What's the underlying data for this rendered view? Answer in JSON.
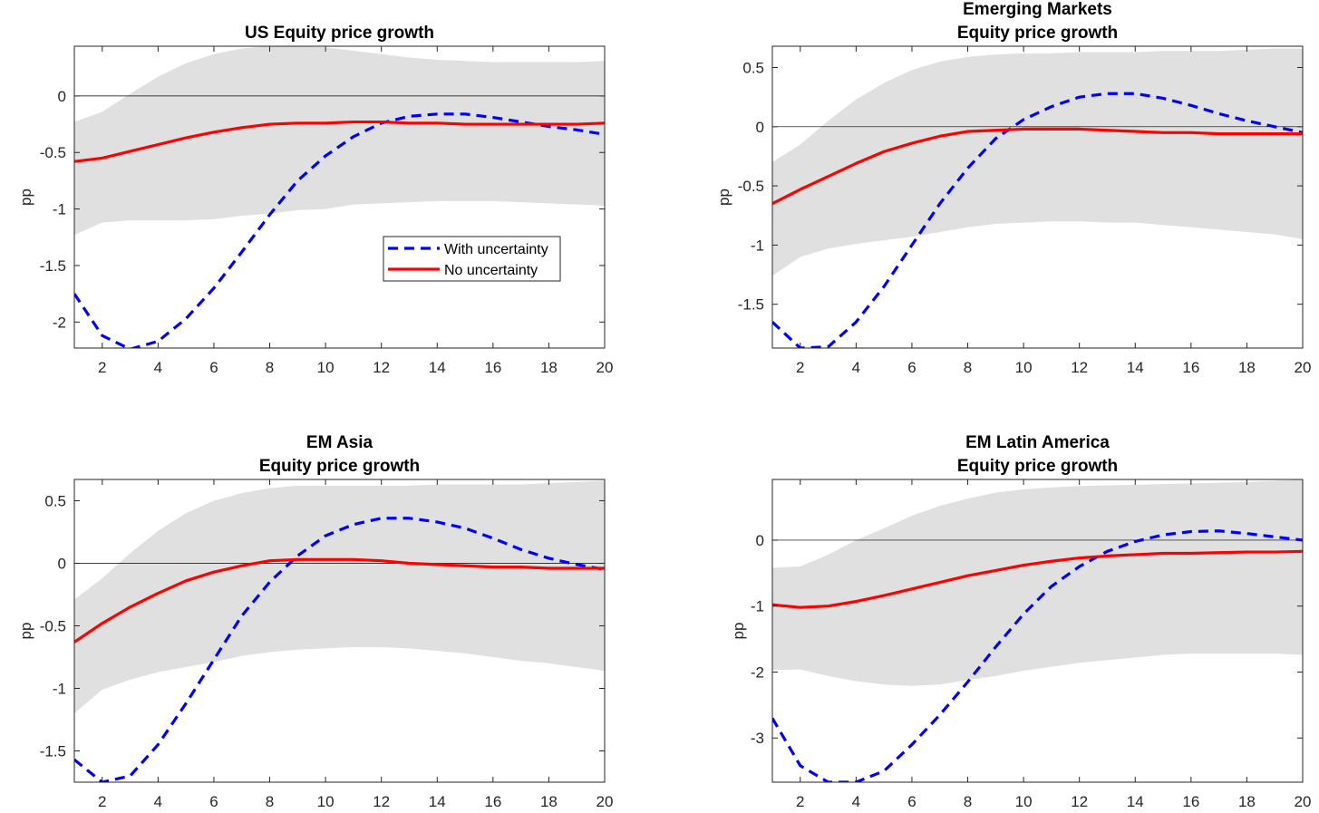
{
  "colors": {
    "band": "#e0e0e0",
    "with_uncertainty": "#0000ff",
    "no_uncertainty": "#ff0000",
    "zero_line": "#000000"
  },
  "legend": {
    "entries": [
      "With uncertainty",
      "No uncertainty"
    ],
    "placement": "inside-lower-right of first panel"
  },
  "chart_data": [
    {
      "type": "line",
      "title": [
        "US Equity price growth"
      ],
      "ylabel": "pp",
      "xlabel": "",
      "xlim": [
        1,
        20
      ],
      "ylim": [
        -2.23,
        0.44
      ],
      "xticks": [
        2,
        4,
        6,
        8,
        10,
        12,
        14,
        16,
        18,
        20
      ],
      "yticks": [
        -2,
        -1.5,
        -1,
        -0.5,
        0
      ],
      "x": [
        1,
        2,
        3,
        4,
        5,
        6,
        7,
        8,
        9,
        10,
        11,
        12,
        13,
        14,
        15,
        16,
        17,
        18,
        19,
        20
      ],
      "series": [
        {
          "name": "With uncertainty",
          "style": "dashed",
          "values": [
            -1.75,
            -2.12,
            -2.24,
            -2.17,
            -1.97,
            -1.7,
            -1.38,
            -1.05,
            -0.75,
            -0.53,
            -0.36,
            -0.24,
            -0.18,
            -0.16,
            -0.16,
            -0.19,
            -0.23,
            -0.27,
            -0.3,
            -0.34
          ]
        },
        {
          "name": "No uncertainty",
          "style": "solid",
          "values": [
            -0.58,
            -0.55,
            -0.49,
            -0.43,
            -0.37,
            -0.32,
            -0.28,
            -0.25,
            -0.24,
            -0.24,
            -0.23,
            -0.23,
            -0.24,
            -0.24,
            -0.25,
            -0.25,
            -0.25,
            -0.25,
            -0.25,
            -0.24
          ]
        }
      ],
      "band": {
        "upper": [
          -0.23,
          -0.14,
          0.02,
          0.17,
          0.29,
          0.37,
          0.42,
          0.44,
          0.44,
          0.43,
          0.4,
          0.37,
          0.34,
          0.32,
          0.31,
          0.3,
          0.3,
          0.3,
          0.3,
          0.31
        ],
        "lower": [
          -1.23,
          -1.12,
          -1.1,
          -1.1,
          -1.1,
          -1.09,
          -1.06,
          -1.04,
          -1.01,
          -1.0,
          -0.96,
          -0.95,
          -0.94,
          -0.93,
          -0.93,
          -0.93,
          -0.94,
          -0.95,
          -0.96,
          -0.97
        ]
      },
      "legend": true
    },
    {
      "type": "line",
      "title": [
        "Emerging Markets",
        "Equity price growth"
      ],
      "ylabel": "pp",
      "xlabel": "",
      "xlim": [
        1,
        20
      ],
      "ylim": [
        -1.87,
        0.68
      ],
      "xticks": [
        2,
        4,
        6,
        8,
        10,
        12,
        14,
        16,
        18,
        20
      ],
      "yticks": [
        -1.5,
        -1,
        -0.5,
        0,
        0.5
      ],
      "x": [
        1,
        2,
        3,
        4,
        5,
        6,
        7,
        8,
        9,
        10,
        11,
        12,
        13,
        14,
        15,
        16,
        17,
        18,
        19,
        20
      ],
      "series": [
        {
          "name": "With uncertainty",
          "style": "dashed",
          "values": [
            -1.65,
            -1.87,
            -1.86,
            -1.65,
            -1.35,
            -1.0,
            -0.65,
            -0.35,
            -0.1,
            0.06,
            0.17,
            0.25,
            0.28,
            0.28,
            0.24,
            0.18,
            0.11,
            0.05,
            0.0,
            -0.05
          ]
        },
        {
          "name": "No uncertainty",
          "style": "solid",
          "values": [
            -0.65,
            -0.53,
            -0.42,
            -0.31,
            -0.21,
            -0.14,
            -0.08,
            -0.04,
            -0.03,
            -0.02,
            -0.02,
            -0.02,
            -0.03,
            -0.04,
            -0.05,
            -0.05,
            -0.06,
            -0.06,
            -0.06,
            -0.06
          ]
        }
      ],
      "band": {
        "upper": [
          -0.3,
          -0.15,
          0.05,
          0.23,
          0.37,
          0.48,
          0.55,
          0.59,
          0.61,
          0.62,
          0.62,
          0.63,
          0.63,
          0.63,
          0.64,
          0.64,
          0.64,
          0.65,
          0.66,
          0.66
        ],
        "lower": [
          -1.26,
          -1.1,
          -1.03,
          -0.99,
          -0.96,
          -0.93,
          -0.89,
          -0.85,
          -0.82,
          -0.81,
          -0.8,
          -0.8,
          -0.81,
          -0.81,
          -0.83,
          -0.85,
          -0.87,
          -0.89,
          -0.91,
          -0.95
        ]
      }
    },
    {
      "type": "line",
      "title": [
        "EM Asia",
        "Equity price growth"
      ],
      "ylabel": "pp",
      "xlabel": "",
      "xlim": [
        1,
        20
      ],
      "ylim": [
        -1.75,
        0.67
      ],
      "xticks": [
        2,
        4,
        6,
        8,
        10,
        12,
        14,
        16,
        18,
        20
      ],
      "yticks": [
        -1.5,
        -1,
        -0.5,
        0,
        0.5
      ],
      "x": [
        1,
        2,
        3,
        4,
        5,
        6,
        7,
        8,
        9,
        10,
        11,
        12,
        13,
        14,
        15,
        16,
        17,
        18,
        19,
        20
      ],
      "series": [
        {
          "name": "With uncertainty",
          "style": "dashed",
          "values": [
            -1.57,
            -1.75,
            -1.7,
            -1.45,
            -1.12,
            -0.77,
            -0.42,
            -0.15,
            0.06,
            0.22,
            0.31,
            0.36,
            0.36,
            0.33,
            0.28,
            0.2,
            0.11,
            0.04,
            -0.01,
            -0.05
          ]
        },
        {
          "name": "No uncertainty",
          "style": "solid",
          "values": [
            -0.63,
            -0.48,
            -0.35,
            -0.24,
            -0.14,
            -0.07,
            -0.02,
            0.02,
            0.03,
            0.03,
            0.03,
            0.02,
            0.0,
            -0.01,
            -0.02,
            -0.03,
            -0.03,
            -0.04,
            -0.04,
            -0.04
          ]
        }
      ],
      "band": {
        "upper": [
          -0.29,
          -0.12,
          0.08,
          0.26,
          0.4,
          0.5,
          0.56,
          0.6,
          0.62,
          0.62,
          0.62,
          0.62,
          0.62,
          0.63,
          0.63,
          0.63,
          0.63,
          0.64,
          0.65,
          0.66
        ],
        "lower": [
          -1.2,
          -1.01,
          -0.93,
          -0.87,
          -0.83,
          -0.79,
          -0.74,
          -0.71,
          -0.69,
          -0.68,
          -0.67,
          -0.67,
          -0.68,
          -0.7,
          -0.72,
          -0.75,
          -0.78,
          -0.8,
          -0.83,
          -0.86
        ]
      }
    },
    {
      "type": "line",
      "title": [
        "EM Latin America",
        "Equity price growth"
      ],
      "ylabel": "pp",
      "xlabel": "",
      "xlim": [
        1,
        20
      ],
      "ylim": [
        -3.67,
        0.92
      ],
      "xticks": [
        2,
        4,
        6,
        8,
        10,
        12,
        14,
        16,
        18,
        20
      ],
      "yticks": [
        -3,
        -2,
        -1,
        0
      ],
      "x": [
        1,
        2,
        3,
        4,
        5,
        6,
        7,
        8,
        9,
        10,
        11,
        12,
        13,
        14,
        15,
        16,
        17,
        18,
        19,
        20
      ],
      "series": [
        {
          "name": "With uncertainty",
          "style": "dashed",
          "values": [
            -2.7,
            -3.42,
            -3.67,
            -3.67,
            -3.5,
            -3.1,
            -2.65,
            -2.15,
            -1.62,
            -1.12,
            -0.7,
            -0.4,
            -0.17,
            -0.02,
            0.08,
            0.13,
            0.14,
            0.1,
            0.05,
            0.0
          ]
        },
        {
          "name": "No uncertainty",
          "style": "solid",
          "values": [
            -0.98,
            -1.02,
            -1.0,
            -0.93,
            -0.84,
            -0.74,
            -0.64,
            -0.54,
            -0.46,
            -0.38,
            -0.32,
            -0.27,
            -0.24,
            -0.22,
            -0.2,
            -0.2,
            -0.19,
            -0.18,
            -0.18,
            -0.17
          ]
        }
      ],
      "band": {
        "upper": [
          -0.42,
          -0.4,
          -0.22,
          0.0,
          0.18,
          0.37,
          0.52,
          0.63,
          0.72,
          0.77,
          0.8,
          0.82,
          0.83,
          0.84,
          0.85,
          0.86,
          0.87,
          0.88,
          0.9,
          0.92
        ],
        "lower": [
          -1.97,
          -1.96,
          -2.06,
          -2.14,
          -2.19,
          -2.21,
          -2.19,
          -2.12,
          -2.06,
          -1.98,
          -1.92,
          -1.86,
          -1.82,
          -1.78,
          -1.74,
          -1.72,
          -1.72,
          -1.72,
          -1.72,
          -1.74
        ]
      }
    }
  ]
}
